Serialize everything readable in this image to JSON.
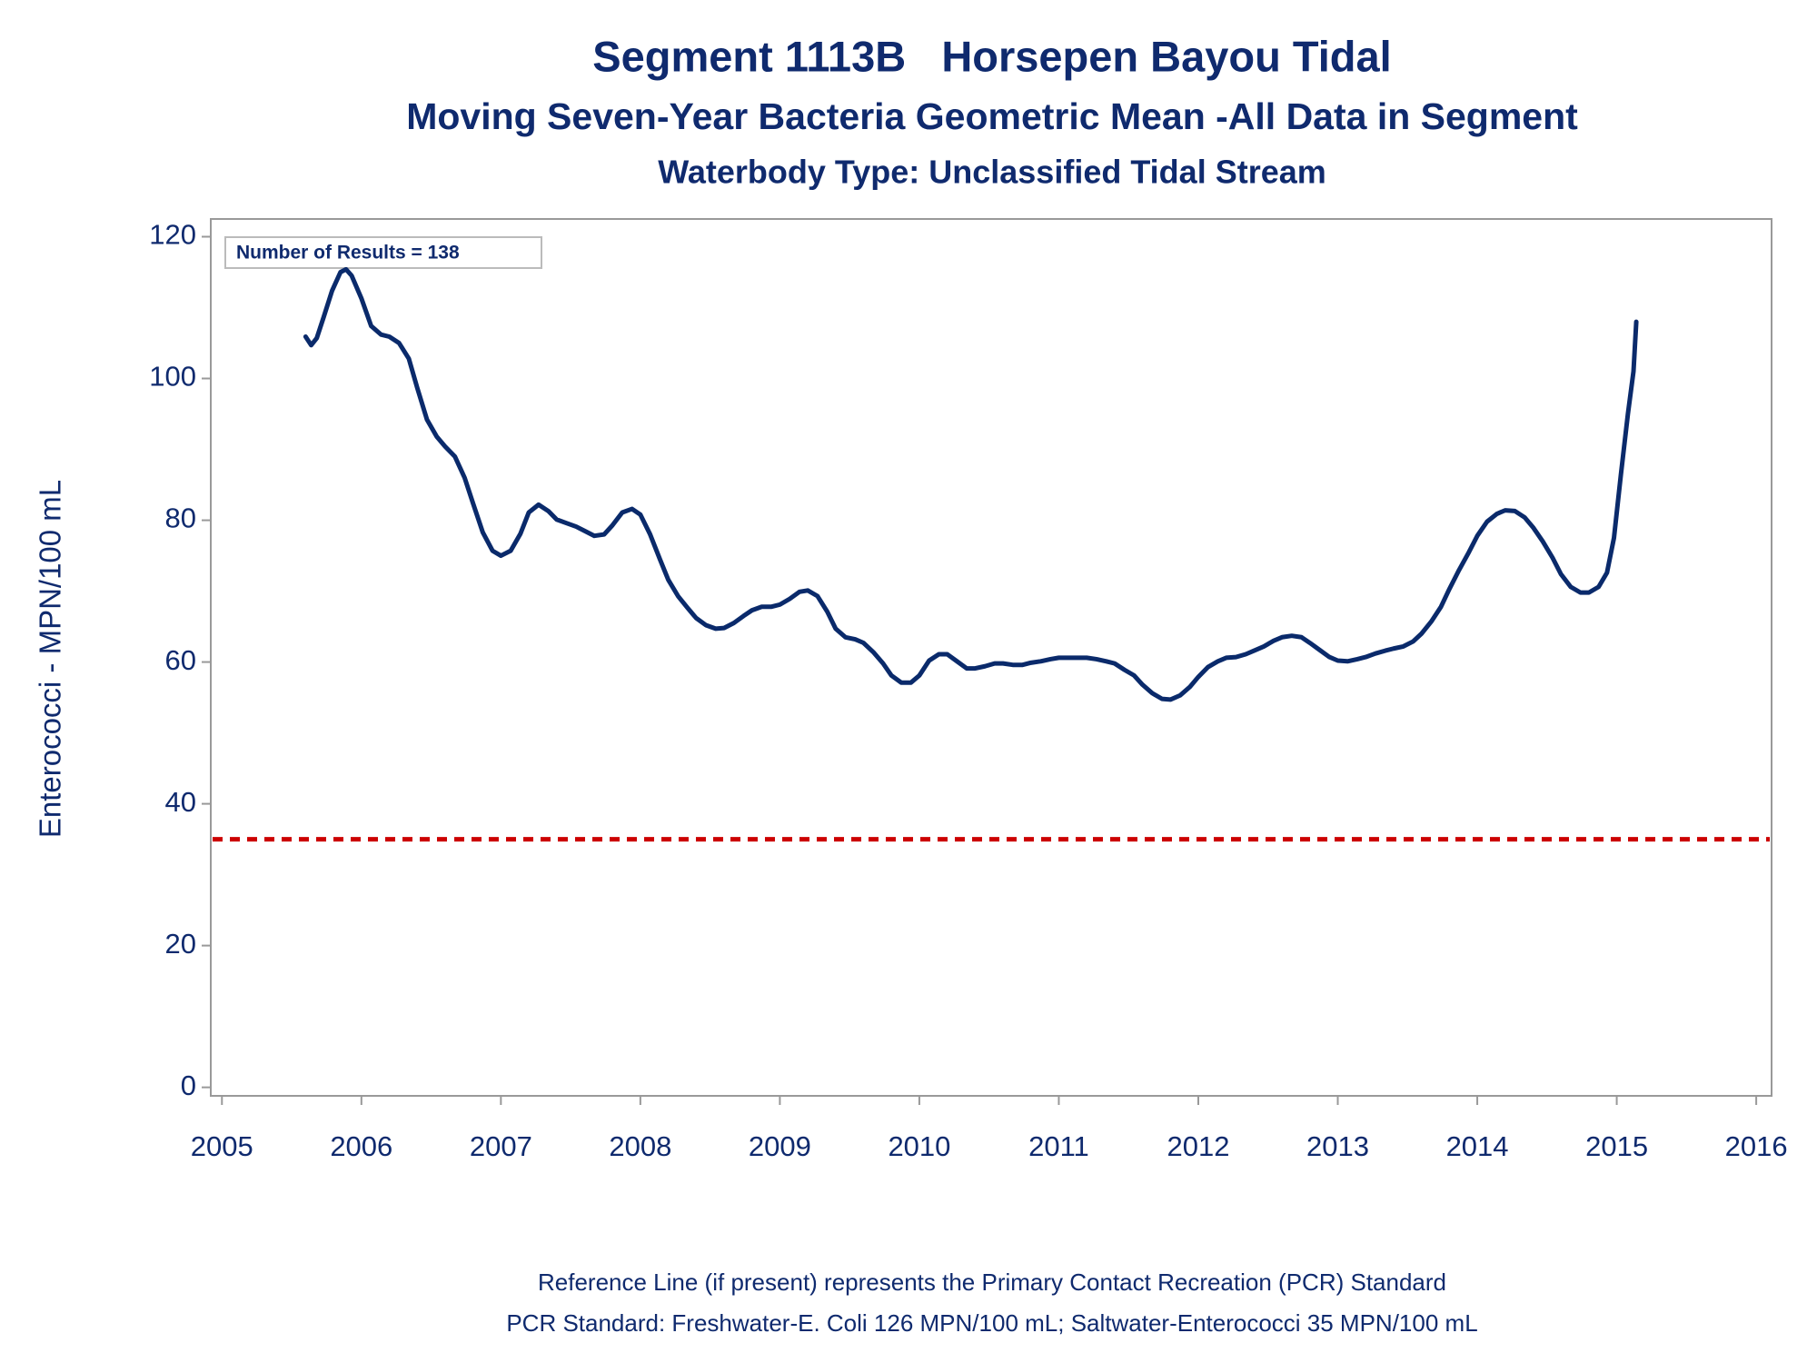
{
  "chart_data": {
    "type": "line",
    "title": "Segment 1113B   Horsepen Bayou Tidal",
    "subtitle": "Moving Seven-Year Bacteria Geometric Mean -All Data in Segment",
    "subtitle2": "Waterbody Type: Unclassified Tidal Stream",
    "y_label": "Enterococci - MPN/100 mL",
    "annotation": "Number of Results = 138",
    "footnotes": [
      "Reference Line (if present) represents the Primary Contact Recreation (PCR) Standard",
      "PCR Standard: Freshwater-E. Coli 126 MPN/100 mL; Saltwater-Enterococci 35 MPN/100 mL"
    ],
    "color": "#0a2a6b",
    "x": [
      2005.6,
      2005.64,
      2005.68,
      2005.73,
      2005.79,
      2005.85,
      2005.89,
      2005.93,
      2006.0,
      2006.07,
      2006.14,
      2006.2,
      2006.27,
      2006.34,
      2006.4,
      2006.47,
      2006.54,
      2006.6,
      2006.67,
      2006.74,
      2006.8,
      2006.87,
      2006.94,
      2007.0,
      2007.07,
      2007.14,
      2007.2,
      2007.27,
      2007.34,
      2007.4,
      2007.47,
      2007.54,
      2007.6,
      2007.67,
      2007.74,
      2007.8,
      2007.87,
      2007.94,
      2008.0,
      2008.07,
      2008.14,
      2008.2,
      2008.27,
      2008.34,
      2008.4,
      2008.47,
      2008.54,
      2008.6,
      2008.67,
      2008.74,
      2008.8,
      2008.87,
      2008.94,
      2009.0,
      2009.07,
      2009.14,
      2009.2,
      2009.27,
      2009.34,
      2009.4,
      2009.47,
      2009.54,
      2009.6,
      2009.67,
      2009.74,
      2009.8,
      2009.87,
      2009.94,
      2010.0,
      2010.07,
      2010.14,
      2010.2,
      2010.27,
      2010.34,
      2010.4,
      2010.47,
      2010.54,
      2010.6,
      2010.67,
      2010.74,
      2010.8,
      2010.87,
      2010.94,
      2011.0,
      2011.07,
      2011.14,
      2011.2,
      2011.27,
      2011.34,
      2011.4,
      2011.47,
      2011.54,
      2011.6,
      2011.67,
      2011.74,
      2011.8,
      2011.87,
      2011.94,
      2012.0,
      2012.07,
      2012.14,
      2012.2,
      2012.27,
      2012.34,
      2012.4,
      2012.47,
      2012.54,
      2012.6,
      2012.67,
      2012.74,
      2012.8,
      2012.87,
      2012.94,
      2013.0,
      2013.07,
      2013.14,
      2013.2,
      2013.27,
      2013.34,
      2013.4,
      2013.47,
      2013.54,
      2013.6,
      2013.67,
      2013.74,
      2013.8,
      2013.87,
      2013.94,
      2014.0,
      2014.07,
      2014.14,
      2014.2,
      2014.27,
      2014.34,
      2014.4,
      2014.47,
      2014.54,
      2014.6,
      2014.67,
      2014.74,
      2014.8,
      2014.87,
      2014.93,
      2014.98,
      2015.03,
      2015.08,
      2015.12,
      2015.14
    ],
    "values": [
      105.9,
      104.7,
      105.7,
      108.7,
      112.4,
      115,
      115.4,
      114.5,
      111.3,
      107.4,
      106.2,
      105.9,
      105,
      102.8,
      98.7,
      94.2,
      91.8,
      90.4,
      89,
      86,
      82.4,
      78.3,
      75.7,
      75,
      75.7,
      78.1,
      81.1,
      82.2,
      81.3,
      80.1,
      79.6,
      79.1,
      78.5,
      77.8,
      78,
      79.3,
      81.1,
      81.6,
      80.8,
      78,
      74.5,
      71.6,
      69.3,
      67.6,
      66.2,
      65.2,
      64.7,
      64.8,
      65.5,
      66.5,
      67.3,
      67.8,
      67.8,
      68.1,
      68.9,
      69.9,
      70.1,
      69.3,
      67.1,
      64.7,
      63.5,
      63.2,
      62.7,
      61.4,
      59.8,
      58.1,
      57.1,
      57.1,
      58.1,
      60.2,
      61.1,
      61.1,
      60.1,
      59.1,
      59.1,
      59.4,
      59.8,
      59.8,
      59.6,
      59.6,
      59.9,
      60.1,
      60.4,
      60.6,
      60.6,
      60.6,
      60.6,
      60.4,
      60.1,
      59.8,
      58.9,
      58.1,
      56.8,
      55.6,
      54.8,
      54.7,
      55.3,
      56.5,
      57.9,
      59.3,
      60.1,
      60.6,
      60.7,
      61.1,
      61.6,
      62.2,
      63,
      63.5,
      63.7,
      63.5,
      62.7,
      61.7,
      60.7,
      60.2,
      60.1,
      60.4,
      60.7,
      61.2,
      61.6,
      61.9,
      62.2,
      62.9,
      64,
      65.7,
      67.8,
      70.3,
      73,
      75.5,
      77.8,
      79.8,
      80.9,
      81.4,
      81.3,
      80.4,
      79,
      77,
      74.7,
      72.4,
      70.6,
      69.8,
      69.8,
      70.6,
      72.6,
      77.5,
      86.5,
      95,
      101,
      108
    ],
    "reference_line": {
      "value": 35,
      "color": "#cc0000"
    },
    "xlim": [
      2004.92,
      2016.11
    ],
    "xticks": [
      2005,
      2006,
      2007,
      2008,
      2009,
      2010,
      2011,
      2012,
      2013,
      2014,
      2015,
      2016
    ],
    "ylim": [
      -1.2,
      122.5
    ],
    "yticks": [
      0,
      20,
      40,
      60,
      80,
      100,
      120
    ]
  }
}
